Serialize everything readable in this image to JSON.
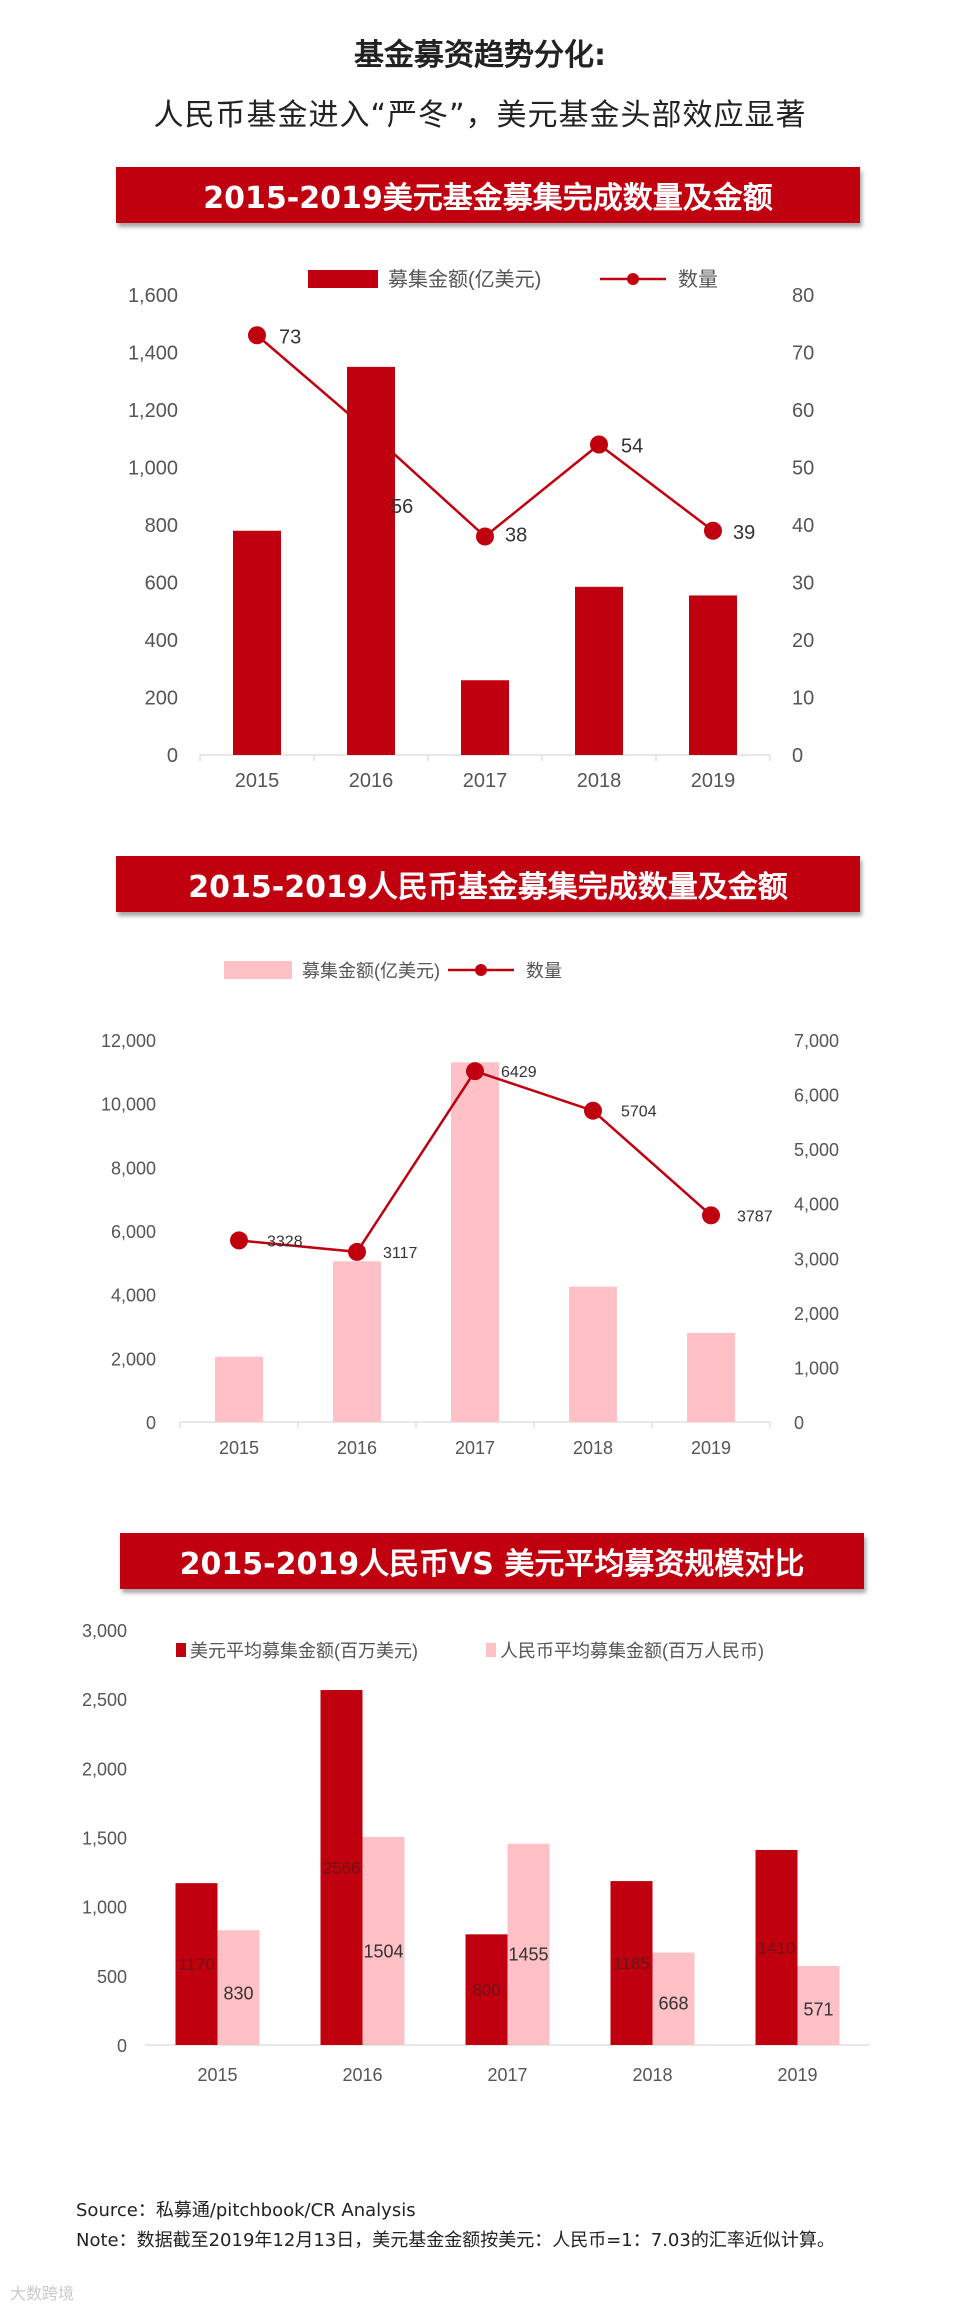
{
  "header": {
    "title_line1": "基金募资趋势分化:",
    "title_line2": "人民币基金进入“严冬”，美元基金头部效应显著"
  },
  "chart_data": [
    {
      "type": "bar",
      "banner": "2015-2019美元基金募集完成数量及金额",
      "categories": [
        "2015",
        "2016",
        "2017",
        "2018",
        "2019"
      ],
      "series": [
        {
          "name": "募集金额(亿美元)",
          "type": "bar",
          "axis": "left",
          "values": [
            780,
            1350,
            260,
            585,
            555
          ]
        },
        {
          "name": "数量",
          "type": "line",
          "axis": "right",
          "values": [
            73,
            56,
            38,
            54,
            39
          ],
          "labels": [
            "73",
            "56",
            "38",
            "54",
            "39"
          ]
        }
      ],
      "ylim": [
        0,
        1600
      ],
      "y_ticks": [
        "0",
        "200",
        "400",
        "600",
        "800",
        "1,000",
        "1,200",
        "1,400",
        "1,600"
      ],
      "y2lim": [
        0,
        80
      ],
      "y2_ticks": [
        "0",
        "10",
        "20",
        "30",
        "40",
        "50",
        "60",
        "70",
        "80"
      ],
      "legend": "top-center",
      "colors": {
        "bar": "#c0000e",
        "line": "#c0000e"
      }
    },
    {
      "type": "bar",
      "banner": "2015-2019人民币基金募集完成数量及金额",
      "categories": [
        "2015",
        "2016",
        "2017",
        "2018",
        "2019"
      ],
      "series": [
        {
          "name": "募集金额(亿美元)",
          "type": "bar",
          "axis": "left",
          "values": [
            2050,
            5050,
            11300,
            4250,
            2800
          ]
        },
        {
          "name": "数量",
          "type": "line",
          "axis": "right",
          "values": [
            3328,
            3117,
            6429,
            5704,
            3787
          ],
          "labels": [
            "3328",
            "3117",
            "6429",
            "5704",
            "3787"
          ]
        }
      ],
      "ylim": [
        0,
        12000
      ],
      "y_ticks": [
        "0",
        "2,000",
        "4,000",
        "6,000",
        "8,000",
        "10,000",
        "12,000"
      ],
      "y2lim": [
        0,
        7000
      ],
      "y2_ticks": [
        "0",
        "1,000",
        "2,000",
        "3,000",
        "4,000",
        "5,000",
        "6,000",
        "7,000"
      ],
      "legend": "top-center",
      "colors": {
        "bar": "#ffc1c5",
        "line": "#c0000e"
      }
    },
    {
      "type": "bar",
      "banner": "2015-2019人民币VS 美元平均募资规模对比",
      "categories": [
        "2015",
        "2016",
        "2017",
        "2018",
        "2019"
      ],
      "series": [
        {
          "name": "美元平均募集金额(百万美元)",
          "values": [
            1170,
            2566,
            800,
            1185,
            1410
          ],
          "labels": [
            "1170",
            "2566",
            "800",
            "1185",
            "1410"
          ]
        },
        {
          "name": "人民币平均募集金额(百万人民币)",
          "values": [
            830,
            1504,
            1455,
            668,
            571
          ],
          "labels": [
            "830",
            "1504",
            "1455",
            "668",
            "571"
          ]
        }
      ],
      "ylim": [
        0,
        3000
      ],
      "y_ticks": [
        "0",
        "500",
        "1,000",
        "1,500",
        "2,000",
        "2,500",
        "3,000"
      ],
      "legend": "top",
      "colors": {
        "series1": "#c0000e",
        "series2": "#ffc1c5"
      }
    }
  ],
  "footer": {
    "source": "Source：私募通/pitchbook/CR Analysis",
    "note": "Note：数据截至2019年12月13日，美元基金金额按美元：人民币=1：7.03的汇率近似计算。",
    "watermark": "大数跨境"
  }
}
